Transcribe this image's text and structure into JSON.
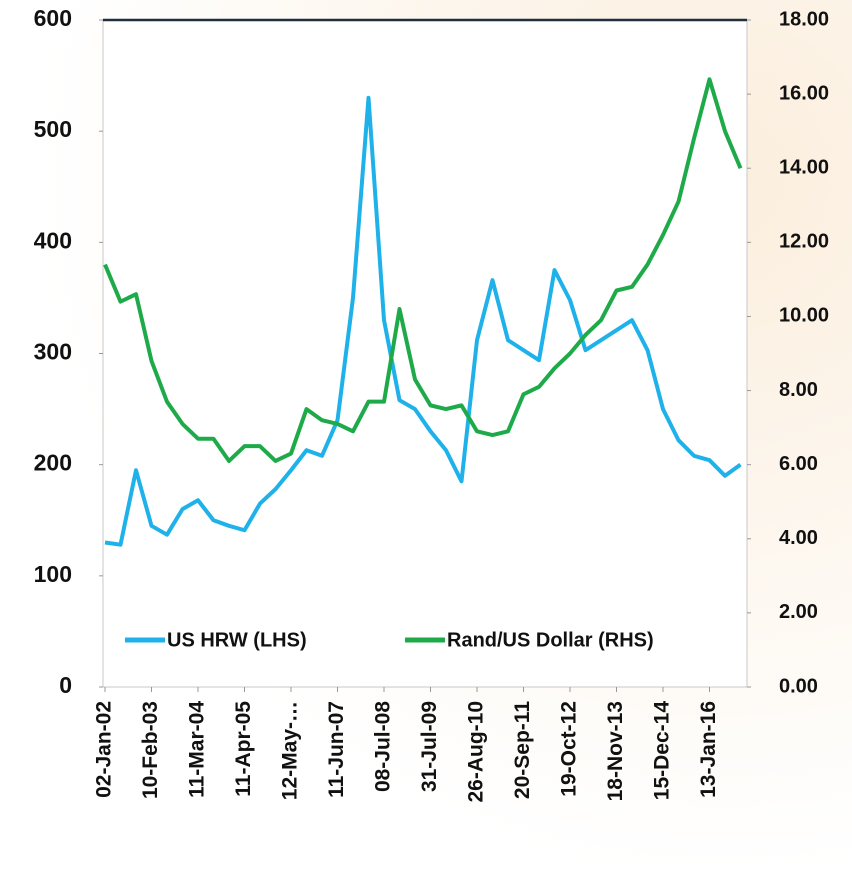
{
  "chart_data": {
    "type": "line",
    "categories": [
      "02-Jan-02",
      null,
      null,
      "10-Feb-03",
      null,
      null,
      "11-Mar-04",
      null,
      null,
      "11-Apr-05",
      null,
      null,
      "12-May-…",
      null,
      null,
      "11-Jun-07",
      null,
      null,
      "08-Jul-08",
      null,
      null,
      "31-Jul-09",
      null,
      null,
      "26-Aug-10",
      null,
      null,
      "20-Sep-11",
      null,
      null,
      "19-Oct-12",
      null,
      null,
      "18-Nov-13",
      null,
      null,
      "15-Dec-14",
      null,
      null,
      "13-Jan-16",
      null,
      null
    ],
    "series": [
      {
        "name": "US HRW (LHS)",
        "color": "#1eb1ea",
        "axis": "y",
        "values": [
          130,
          128,
          195,
          145,
          137,
          160,
          168,
          150,
          145,
          141,
          165,
          178,
          195,
          213,
          208,
          240,
          350,
          530,
          330,
          258,
          250,
          230,
          213,
          185,
          312,
          366,
          312,
          303,
          294,
          375,
          348,
          303,
          312,
          321,
          330,
          303,
          250,
          222,
          208,
          204,
          190,
          200
        ]
      },
      {
        "name": "Rand/US Dollar (RHS)",
        "color": "#1faa4a",
        "axis": "y2",
        "values": [
          11.4,
          10.4,
          10.6,
          8.8,
          7.7,
          7.1,
          6.7,
          6.7,
          6.1,
          6.5,
          6.5,
          6.1,
          6.3,
          7.5,
          7.2,
          7.1,
          6.9,
          7.7,
          7.7,
          10.2,
          8.3,
          7.6,
          7.5,
          7.6,
          6.9,
          6.8,
          6.9,
          7.9,
          8.1,
          8.6,
          9.0,
          9.5,
          9.9,
          10.7,
          10.8,
          11.4,
          12.2,
          13.1,
          14.8,
          16.4,
          15.0,
          14.0
        ]
      }
    ],
    "ylim": [
      0,
      600
    ],
    "yticks": [
      0,
      100,
      200,
      300,
      400,
      500,
      600
    ],
    "y2lim": [
      0,
      18
    ],
    "y2ticks": [
      {
        "value": 0,
        "label": "0.00"
      },
      {
        "value": 2,
        "label": "2.00"
      },
      {
        "value": 4,
        "label": "4.00"
      },
      {
        "value": 6,
        "label": "6.00"
      },
      {
        "value": 8,
        "label": "8.00"
      },
      {
        "value": 10,
        "label": "10.00"
      },
      {
        "value": 12,
        "label": "12.00"
      },
      {
        "value": 14,
        "label": "14.00"
      },
      {
        "value": 16,
        "label": "16.00"
      },
      {
        "value": 18,
        "label": "18.00"
      }
    ],
    "legend": "bottom",
    "grid": false
  }
}
